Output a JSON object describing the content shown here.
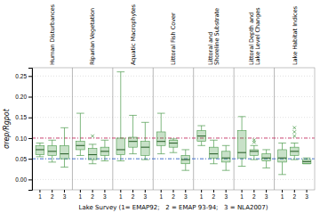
{
  "chart_data": {
    "type": "box",
    "categories": [
      "Human Disturbances",
      "Riparian Vegetation",
      "Aquatic Macrophytes",
      "Littoral Fish Cover",
      "Littoral and\nShoreline Substrate",
      "Littoral Depth and\nLake Level Changes",
      "Lake Habitat Indices"
    ],
    "group_labels": [
      "1",
      "2",
      "3"
    ],
    "boxes": [
      [
        {
          "q1": 0.06,
          "med": 0.072,
          "q3": 0.082,
          "whislo": 0.055,
          "whishi": 0.088,
          "fliers": []
        },
        {
          "q1": 0.058,
          "med": 0.068,
          "q3": 0.082,
          "whislo": 0.042,
          "whishi": 0.095,
          "fliers": []
        },
        {
          "q1": 0.05,
          "med": 0.062,
          "q3": 0.082,
          "whislo": 0.03,
          "whishi": 0.125,
          "fliers": []
        }
      ],
      [
        {
          "q1": 0.072,
          "med": 0.082,
          "q3": 0.092,
          "whislo": 0.058,
          "whishi": 0.16,
          "fliers": []
        },
        {
          "q1": 0.048,
          "med": 0.06,
          "q3": 0.075,
          "whislo": 0.038,
          "whishi": 0.085,
          "fliers": [
            0.105
          ]
        },
        {
          "q1": 0.058,
          "med": 0.068,
          "q3": 0.078,
          "whislo": 0.045,
          "whishi": 0.095,
          "fliers": []
        }
      ],
      [
        {
          "q1": 0.06,
          "med": 0.072,
          "q3": 0.1,
          "whislo": 0.045,
          "whishi": 0.26,
          "fliers": []
        },
        {
          "q1": 0.078,
          "med": 0.092,
          "q3": 0.102,
          "whislo": 0.062,
          "whishi": 0.155,
          "fliers": []
        },
        {
          "q1": 0.058,
          "med": 0.078,
          "q3": 0.092,
          "whislo": 0.048,
          "whishi": 0.138,
          "fliers": []
        }
      ],
      [
        {
          "q1": 0.082,
          "med": 0.092,
          "q3": 0.115,
          "whislo": 0.062,
          "whishi": 0.16,
          "fliers": []
        },
        {
          "q1": 0.078,
          "med": 0.088,
          "q3": 0.095,
          "whislo": 0.065,
          "whishi": 0.098,
          "fliers": []
        },
        {
          "q1": 0.038,
          "med": 0.048,
          "q3": 0.058,
          "whislo": 0.022,
          "whishi": 0.072,
          "fliers": []
        }
      ],
      [
        {
          "q1": 0.092,
          "med": 0.105,
          "q3": 0.118,
          "whislo": 0.082,
          "whishi": 0.13,
          "fliers": []
        },
        {
          "q1": 0.052,
          "med": 0.062,
          "q3": 0.078,
          "whislo": 0.038,
          "whishi": 0.095,
          "fliers": []
        },
        {
          "q1": 0.042,
          "med": 0.052,
          "q3": 0.068,
          "whislo": 0.022,
          "whishi": 0.082,
          "fliers": []
        }
      ],
      [
        {
          "q1": 0.052,
          "med": 0.065,
          "q3": 0.118,
          "whislo": 0.032,
          "whishi": 0.152,
          "fliers": []
        },
        {
          "q1": 0.058,
          "med": 0.068,
          "q3": 0.072,
          "whislo": 0.048,
          "whishi": 0.082,
          "fliers": [
            0.09,
            0.095
          ]
        },
        {
          "q1": 0.045,
          "med": 0.052,
          "q3": 0.062,
          "whislo": 0.028,
          "whishi": 0.072,
          "fliers": []
        }
      ],
      [
        {
          "q1": 0.042,
          "med": 0.052,
          "q3": 0.072,
          "whislo": 0.012,
          "whishi": 0.088,
          "fliers": []
        },
        {
          "q1": 0.058,
          "med": 0.068,
          "q3": 0.078,
          "whislo": 0.048,
          "whishi": 0.088,
          "fliers": [
            0.105,
            0.115,
            0.125
          ]
        },
        {
          "q1": 0.038,
          "med": 0.043,
          "q3": 0.048,
          "whislo": 0.038,
          "whishi": 0.052,
          "fliers": []
        }
      ]
    ],
    "ylabel": "σrep/Rgpot",
    "xlabel": "Lake Survey (1= EMAP92;   2 = EMAP 93-94;   3 = NLA2007)",
    "ylim": [
      -0.025,
      0.27
    ],
    "yticks": [
      {
        "value": 0,
        "label": "0.00"
      },
      0.05,
      {
        "value": 0.1,
        "label": "0.10"
      },
      0.15,
      {
        "value": 0.2,
        "label": "0.20"
      },
      0.25
    ],
    "grid": true,
    "color": "#4a9a4a",
    "marker": "x",
    "reference_lines": [
      {
        "value": 0.1,
        "color": "#cc3366"
      },
      {
        "value": 0.05,
        "color": "#3366cc"
      }
    ]
  }
}
